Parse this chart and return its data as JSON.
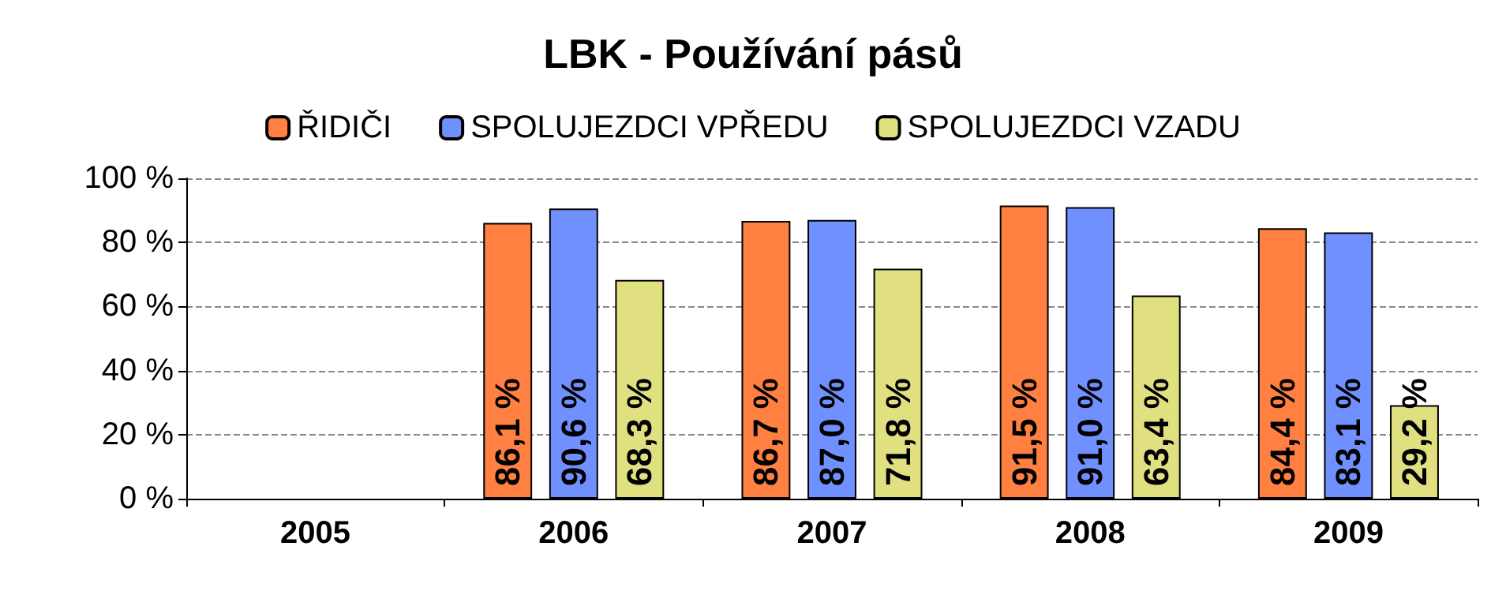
{
  "chart_data": {
    "type": "bar",
    "title": "LBK - Používání pásů",
    "categories": [
      "2005",
      "2006",
      "2007",
      "2008",
      "2009"
    ],
    "series": [
      {
        "name": "ŘIDIČI",
        "color": "#ff8040",
        "values": [
          null,
          86.1,
          86.7,
          91.5,
          84.4
        ],
        "value_labels": [
          null,
          "86,1 %",
          "86,7 %",
          "91,5 %",
          "84,4 %"
        ]
      },
      {
        "name": "SPOLUJEZDCI VPŘEDU",
        "color": "#7090ff",
        "values": [
          null,
          90.6,
          87.0,
          91.0,
          83.1
        ],
        "value_labels": [
          null,
          "90,6 %",
          "87,0 %",
          "91,0 %",
          "83,1 %"
        ]
      },
      {
        "name": "SPOLUJEZDCI VZADU",
        "color": "#e0e080",
        "values": [
          null,
          68.3,
          71.8,
          63.4,
          29.2
        ],
        "value_labels": [
          null,
          "68,3 %",
          "71,8 %",
          "63,4 %",
          "29,2 %"
        ]
      }
    ],
    "ylim": [
      0,
      100
    ],
    "yticks": [
      {
        "value": 0,
        "label": "0 %"
      },
      {
        "value": 20,
        "label": "20 %"
      },
      {
        "value": 40,
        "label": "40 %"
      },
      {
        "value": 60,
        "label": "60 %"
      },
      {
        "value": 80,
        "label": "80 %"
      },
      {
        "value": 100,
        "label": "100 %"
      }
    ],
    "grid": "y",
    "legend": "top"
  }
}
